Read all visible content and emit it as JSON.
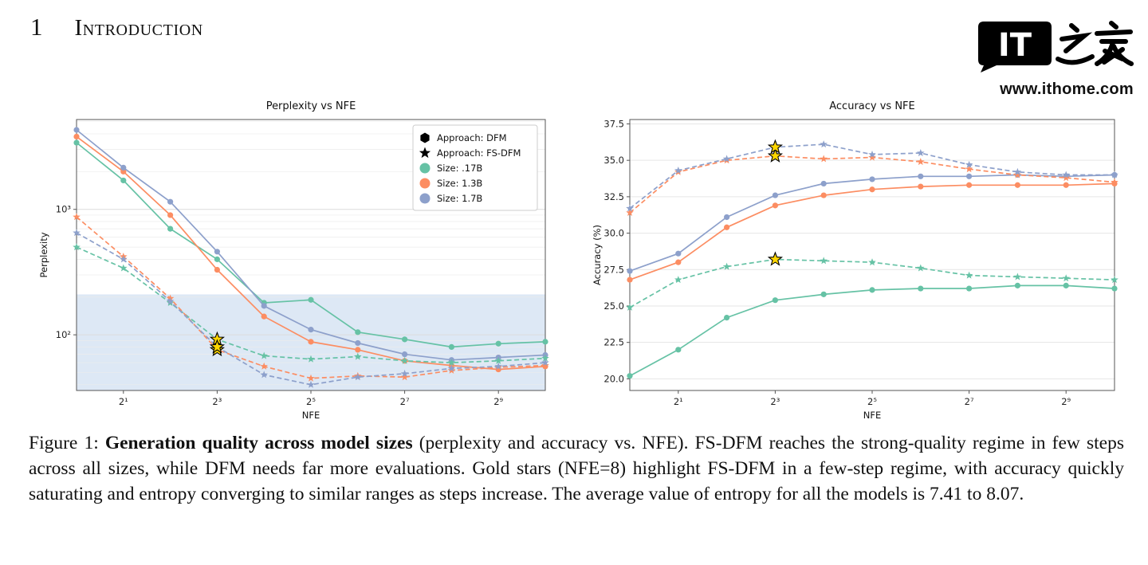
{
  "page": {
    "section_number": "1",
    "section_title": "Introduction"
  },
  "watermark": {
    "logo_text_it": "IT",
    "logo_text_cn": "之家",
    "url": "www.ithome.com"
  },
  "figure": {
    "caption_label": "Figure 1: ",
    "caption_bold": "Generation quality across model sizes",
    "caption_rest": " (perplexity and accuracy vs. NFE). FS-DFM reaches the strong-quality regime in few steps across all sizes, while DFM needs far more evaluations. Gold stars (NFE=8) highlight FS-DFM in a few-step regime, with accuracy quickly saturating and entropy converging to similar ranges as steps increase. The average value of entropy for all the models is 7.41 to 8.07."
  },
  "colors": {
    "size_17B": "#66c2a5",
    "size_13B": "#fc8d62",
    "size_17B_large": "#8da0cb",
    "gold_star": "#FFD700",
    "shade": "#dde8f5",
    "grid": "#e9e9e9",
    "frame": "#444444"
  },
  "chart_data": [
    {
      "type": "line",
      "title": "Perplexity vs NFE",
      "xlabel": "NFE",
      "ylabel": "Perplexity",
      "x_powers": [
        0,
        1,
        2,
        3,
        4,
        5,
        6,
        7,
        8,
        9,
        10
      ],
      "x_ticks": [
        {
          "pos": 1,
          "label": "2¹"
        },
        {
          "pos": 3,
          "label": "2³"
        },
        {
          "pos": 5,
          "label": "2⁵"
        },
        {
          "pos": 7,
          "label": "2⁷"
        },
        {
          "pos": 9,
          "label": "2⁹"
        }
      ],
      "y_scale": "log",
      "ylim": [
        36,
        5200
      ],
      "y_ticks": [
        {
          "value": 100,
          "label": "10²"
        },
        {
          "value": 1000,
          "label": "10³"
        }
      ],
      "shaded_below": 210,
      "shade_color": "#dde8f5",
      "gold_color": "#FFD700",
      "legend": [
        {
          "label": "Approach: DFM",
          "marker": "hexagon",
          "color": "#000000"
        },
        {
          "label": "Approach: FS-DFM",
          "marker": "star",
          "color": "#000000"
        },
        {
          "label": "Size: .17B",
          "marker": "dot",
          "color": "#66c2a5"
        },
        {
          "label": "Size: 1.3B",
          "marker": "dot",
          "color": "#fc8d62"
        },
        {
          "label": "Size: 1.7B",
          "marker": "dot",
          "color": "#8da0cb"
        }
      ],
      "series": [
        {
          "name": "DFM .17B",
          "approach": "DFM",
          "size": ".17B",
          "color": "#66c2a5",
          "dash": false,
          "marker": "circle",
          "values": [
            3400,
            1700,
            700,
            400,
            180,
            190,
            105,
            92,
            80,
            85,
            88
          ]
        },
        {
          "name": "DFM 1.3B",
          "approach": "DFM",
          "size": "1.3B",
          "color": "#fc8d62",
          "dash": false,
          "marker": "circle",
          "values": [
            3800,
            2000,
            900,
            330,
            140,
            88,
            76,
            62,
            57,
            53,
            56
          ]
        },
        {
          "name": "DFM 1.7B",
          "approach": "DFM",
          "size": "1.7B",
          "color": "#8da0cb",
          "dash": false,
          "marker": "circle",
          "values": [
            4300,
            2150,
            1150,
            460,
            170,
            110,
            86,
            70,
            63,
            66,
            69
          ]
        },
        {
          "name": "FS-DFM .17B",
          "approach": "FS-DFM",
          "size": ".17B",
          "color": "#66c2a5",
          "dash": true,
          "marker": "star",
          "gold_star_at": 3,
          "values": [
            500,
            340,
            180,
            92,
            68,
            64,
            67,
            62,
            60,
            62,
            65
          ]
        },
        {
          "name": "FS-DFM 1.3B",
          "approach": "FS-DFM",
          "size": "1.3B",
          "color": "#fc8d62",
          "dash": true,
          "marker": "star",
          "gold_star_at": 3,
          "values": [
            870,
            420,
            195,
            76,
            56,
            45,
            47,
            46,
            52,
            55,
            57
          ]
        },
        {
          "name": "FS-DFM 1.7B",
          "approach": "FS-DFM",
          "size": "1.7B",
          "color": "#8da0cb",
          "dash": true,
          "marker": "star",
          "gold_star_at": 3,
          "values": [
            650,
            400,
            185,
            80,
            48,
            40,
            46,
            49,
            54,
            56,
            60
          ]
        }
      ]
    },
    {
      "type": "line",
      "title": "Accuracy vs NFE",
      "xlabel": "NFE",
      "ylabel": "Accuracy (%)",
      "x_powers": [
        0,
        1,
        2,
        3,
        4,
        5,
        6,
        7,
        8,
        9,
        10
      ],
      "x_ticks": [
        {
          "pos": 1,
          "label": "2¹"
        },
        {
          "pos": 3,
          "label": "2³"
        },
        {
          "pos": 5,
          "label": "2⁵"
        },
        {
          "pos": 7,
          "label": "2⁷"
        },
        {
          "pos": 9,
          "label": "2⁹"
        }
      ],
      "y_scale": "linear",
      "ylim": [
        19.2,
        37.8
      ],
      "y_ticks": [
        {
          "value": 20.0,
          "label": "20.0"
        },
        {
          "value": 22.5,
          "label": "22.5"
        },
        {
          "value": 25.0,
          "label": "25.0"
        },
        {
          "value": 27.5,
          "label": "27.5"
        },
        {
          "value": 30.0,
          "label": "30.0"
        },
        {
          "value": 32.5,
          "label": "32.5"
        },
        {
          "value": 35.0,
          "label": "35.0"
        },
        {
          "value": 37.5,
          "label": "37.5"
        }
      ],
      "gold_color": "#FFD700",
      "series": [
        {
          "name": "DFM .17B",
          "approach": "DFM",
          "size": ".17B",
          "color": "#66c2a5",
          "dash": false,
          "marker": "circle",
          "values": [
            20.2,
            22.0,
            24.2,
            25.4,
            25.8,
            26.1,
            26.2,
            26.2,
            26.4,
            26.4,
            26.2
          ]
        },
        {
          "name": "DFM 1.3B",
          "approach": "DFM",
          "size": "1.3B",
          "color": "#fc8d62",
          "dash": false,
          "marker": "circle",
          "values": [
            26.8,
            28.0,
            30.4,
            31.9,
            32.6,
            33.0,
            33.2,
            33.3,
            33.3,
            33.3,
            33.4
          ]
        },
        {
          "name": "DFM 1.7B",
          "approach": "DFM",
          "size": "1.7B",
          "color": "#8da0cb",
          "dash": false,
          "marker": "circle",
          "values": [
            27.4,
            28.6,
            31.1,
            32.6,
            33.4,
            33.7,
            33.9,
            33.9,
            34.0,
            33.9,
            34.0
          ]
        },
        {
          "name": "FS-DFM .17B",
          "approach": "FS-DFM",
          "size": ".17B",
          "color": "#66c2a5",
          "dash": true,
          "marker": "star",
          "gold_star_at": 3,
          "values": [
            24.9,
            26.8,
            27.7,
            28.2,
            28.1,
            28.0,
            27.6,
            27.1,
            27.0,
            26.9,
            26.8
          ]
        },
        {
          "name": "FS-DFM 1.3B",
          "approach": "FS-DFM",
          "size": "1.3B",
          "color": "#fc8d62",
          "dash": true,
          "marker": "star",
          "gold_star_at": 3,
          "values": [
            31.4,
            34.2,
            35.0,
            35.3,
            35.1,
            35.2,
            34.9,
            34.4,
            34.0,
            33.8,
            33.5
          ]
        },
        {
          "name": "FS-DFM 1.7B",
          "approach": "FS-DFM",
          "size": "1.7B",
          "color": "#8da0cb",
          "dash": true,
          "marker": "star",
          "gold_star_at": 3,
          "values": [
            31.7,
            34.3,
            35.1,
            35.9,
            36.1,
            35.4,
            35.5,
            34.7,
            34.2,
            34.0,
            34.0
          ]
        }
      ]
    }
  ]
}
